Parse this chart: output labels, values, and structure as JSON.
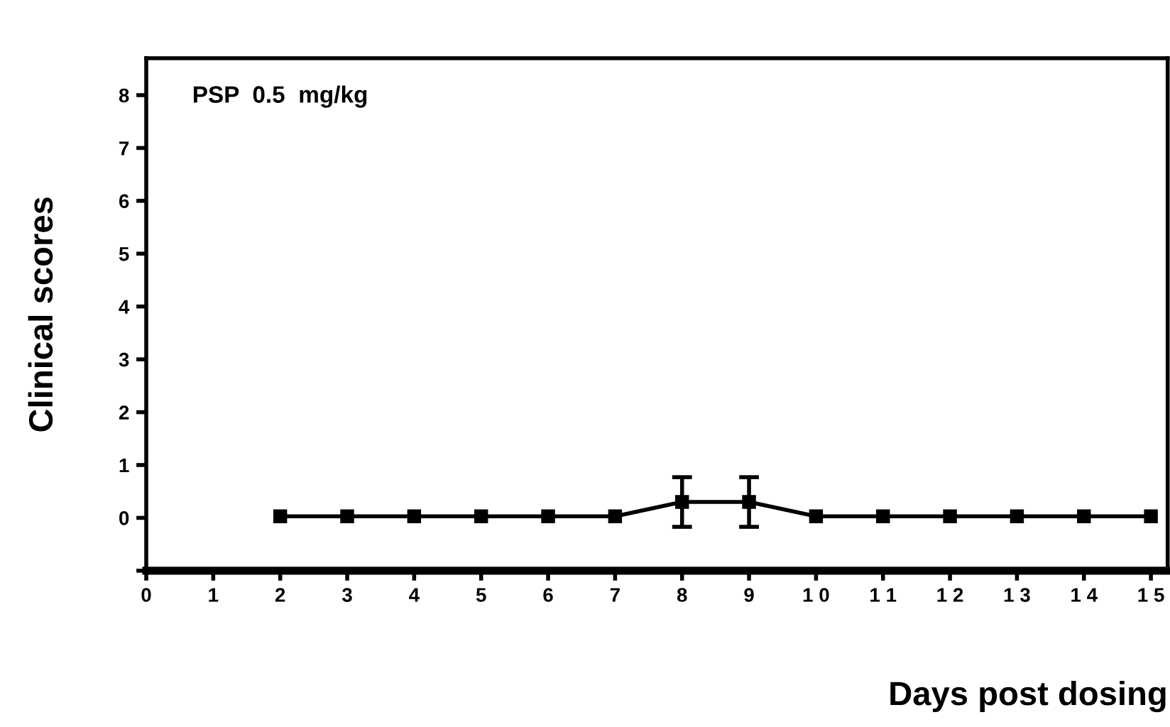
{
  "chart_data": {
    "type": "line",
    "xlabel": "Days post dosing",
    "ylabel": "Clinical scores",
    "annotations": [
      "PSP  0.5  mg/kg"
    ],
    "x": [
      2,
      3,
      4,
      5,
      6,
      7,
      8,
      9,
      10,
      11,
      12,
      13,
      14,
      15
    ],
    "series": [
      {
        "color": "#000000",
        "values": [
          0.03,
          0.03,
          0.03,
          0.03,
          0.03,
          0.03,
          0.3,
          0.3,
          0.03,
          0.03,
          0.03,
          0.03,
          0.03,
          0.03
        ],
        "errors": [
          null,
          null,
          null,
          null,
          null,
          null,
          0.47,
          0.47,
          null,
          null,
          null,
          null,
          null,
          null
        ]
      }
    ],
    "marker": "square",
    "line_style": "solid",
    "grid": false,
    "legend": false,
    "xlim": [
      0,
      15.25
    ],
    "ylim": [
      -1,
      8.7
    ],
    "xticks": [
      0,
      1,
      2,
      3,
      4,
      5,
      6,
      7,
      8,
      9,
      {
        "value": 10,
        "label": "1 0"
      },
      {
        "value": 11,
        "label": "1 1"
      },
      {
        "value": 12,
        "label": "1 2"
      },
      {
        "value": 13,
        "label": "1 3"
      },
      {
        "value": 14,
        "label": "1 4"
      },
      {
        "value": 15,
        "label": "1 5"
      }
    ],
    "yticks": [
      {
        "value": -1,
        "label": null
      },
      0,
      1,
      2,
      3,
      4,
      5,
      6,
      7,
      8
    ]
  }
}
